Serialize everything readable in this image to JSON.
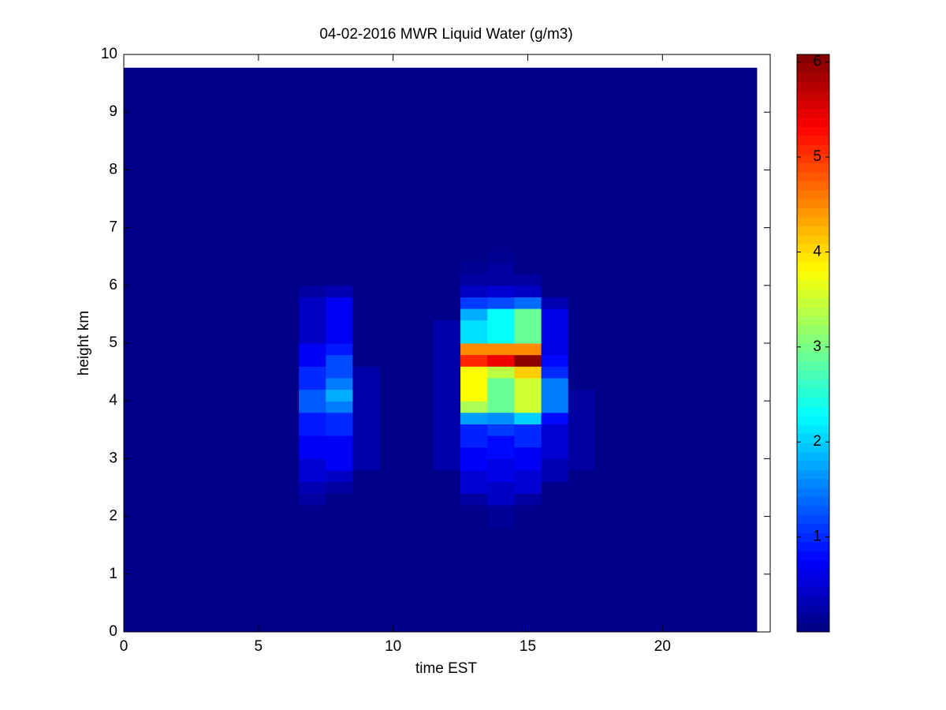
{
  "chart_data": {
    "type": "heatmap",
    "title": "04-02-2016 MWR Liquid Water (g/m3)",
    "x_label": "time EST",
    "y_label": "height km",
    "xlim": [
      0,
      24
    ],
    "xticks": [
      0,
      5,
      10,
      15,
      20
    ],
    "ylim": [
      0,
      10
    ],
    "yticks": [
      0,
      1,
      2,
      3,
      4,
      5,
      6,
      7,
      8,
      9,
      10
    ],
    "colormap": "jet",
    "clim": [
      0,
      6.08
    ],
    "colorbar_ticks": [
      1,
      2,
      3,
      4,
      5,
      6
    ],
    "x_edges": [
      0,
      6.5,
      7.5,
      8.5,
      9.5,
      11.5,
      12.5,
      13.5,
      14.5,
      15.5,
      16.5,
      17.5,
      23.5
    ],
    "y_edges": [
      0,
      1.8,
      2.0,
      2.2,
      2.4,
      2.6,
      2.8,
      3.0,
      3.2,
      3.4,
      3.6,
      3.8,
      4.0,
      4.2,
      4.4,
      4.6,
      4.8,
      5.0,
      5.2,
      5.4,
      5.6,
      5.8,
      6.0,
      6.2,
      6.4,
      6.6,
      9.77
    ],
    "z": [
      [
        0.05,
        0.05,
        0.05,
        0.05,
        0.05,
        0.05,
        0.05,
        0.05,
        0.05,
        0.05,
        0.05,
        0.05
      ],
      [
        0.05,
        0.05,
        0.05,
        0.05,
        0.05,
        0.05,
        0.05,
        0.12,
        0.05,
        0.05,
        0.05,
        0.05
      ],
      [
        0.05,
        0.05,
        0.05,
        0.05,
        0.05,
        0.05,
        0.05,
        0.15,
        0.05,
        0.05,
        0.05,
        0.05
      ],
      [
        0.05,
        0.2,
        0.05,
        0.05,
        0.05,
        0.05,
        0.2,
        0.4,
        0.2,
        0.05,
        0.05,
        0.05
      ],
      [
        0.05,
        0.3,
        0.2,
        0.05,
        0.05,
        0.05,
        0.5,
        0.4,
        0.5,
        0.05,
        0.05,
        0.05
      ],
      [
        0.05,
        0.5,
        0.4,
        0.05,
        0.05,
        0.05,
        0.5,
        0.6,
        0.5,
        0.3,
        0.05,
        0.05
      ],
      [
        0.05,
        0.5,
        0.7,
        0.25,
        0.05,
        0.25,
        0.75,
        0.6,
        0.7,
        0.3,
        0.2,
        0.05
      ],
      [
        0.05,
        0.7,
        0.7,
        0.25,
        0.05,
        0.25,
        0.75,
        0.8,
        0.7,
        0.5,
        0.2,
        0.05
      ],
      [
        0.05,
        0.7,
        0.7,
        0.25,
        0.05,
        0.25,
        0.95,
        0.8,
        1.0,
        0.5,
        0.2,
        0.05
      ],
      [
        0.05,
        0.9,
        1.0,
        0.25,
        0.05,
        0.25,
        0.95,
        1.1,
        1.0,
        0.5,
        0.2,
        0.05
      ],
      [
        0.05,
        0.9,
        1.0,
        0.25,
        0.05,
        0.25,
        1.7,
        1.6,
        2.0,
        0.8,
        0.2,
        0.05
      ],
      [
        0.05,
        1.3,
        1.5,
        0.25,
        0.05,
        0.25,
        3.3,
        2.9,
        3.5,
        1.5,
        0.2,
        0.05
      ],
      [
        0.05,
        1.3,
        1.8,
        0.25,
        0.05,
        0.25,
        3.8,
        2.9,
        3.5,
        1.5,
        0.2,
        0.05
      ],
      [
        0.05,
        1.0,
        1.5,
        0.25,
        0.05,
        0.25,
        3.8,
        2.9,
        3.5,
        1.5,
        0.05,
        0.05
      ],
      [
        0.05,
        1.0,
        1.2,
        0.25,
        0.05,
        0.25,
        3.8,
        3.4,
        4.1,
        1.0,
        0.05,
        0.05
      ],
      [
        0.05,
        0.7,
        1.2,
        0.05,
        0.05,
        0.25,
        5.1,
        5.4,
        6.0,
        0.8,
        0.05,
        0.05
      ],
      [
        0.05,
        0.7,
        0.9,
        0.05,
        0.05,
        0.25,
        4.5,
        4.5,
        4.5,
        0.6,
        0.05,
        0.05
      ],
      [
        0.05,
        0.4,
        0.7,
        0.05,
        0.05,
        0.25,
        2.1,
        2.3,
        2.9,
        0.6,
        0.05,
        0.05
      ],
      [
        0.05,
        0.4,
        0.7,
        0.05,
        0.05,
        0.25,
        2.1,
        2.3,
        2.9,
        0.6,
        0.05,
        0.05
      ],
      [
        0.05,
        0.4,
        0.7,
        0.05,
        0.05,
        0.05,
        1.8,
        2.3,
        2.9,
        0.6,
        0.05,
        0.05
      ],
      [
        0.05,
        0.4,
        0.7,
        0.05,
        0.05,
        0.05,
        1.1,
        1.2,
        1.4,
        0.3,
        0.05,
        0.05
      ],
      [
        0.05,
        0.2,
        0.3,
        0.05,
        0.05,
        0.05,
        0.4,
        0.5,
        0.4,
        0.05,
        0.05,
        0.05
      ],
      [
        0.05,
        0.05,
        0.05,
        0.05,
        0.05,
        0.05,
        0.2,
        0.2,
        0.2,
        0.05,
        0.05,
        0.05
      ],
      [
        0.05,
        0.05,
        0.05,
        0.05,
        0.05,
        0.05,
        0.1,
        0.2,
        0.05,
        0.05,
        0.05,
        0.05
      ],
      [
        0.05,
        0.05,
        0.05,
        0.05,
        0.05,
        0.05,
        0.05,
        0.1,
        0.05,
        0.05,
        0.05,
        0.05
      ],
      [
        0.05,
        0.05,
        0.05,
        0.05,
        0.05,
        0.05,
        0.05,
        0.05,
        0.05,
        0.05,
        0.05,
        0.05
      ]
    ]
  }
}
